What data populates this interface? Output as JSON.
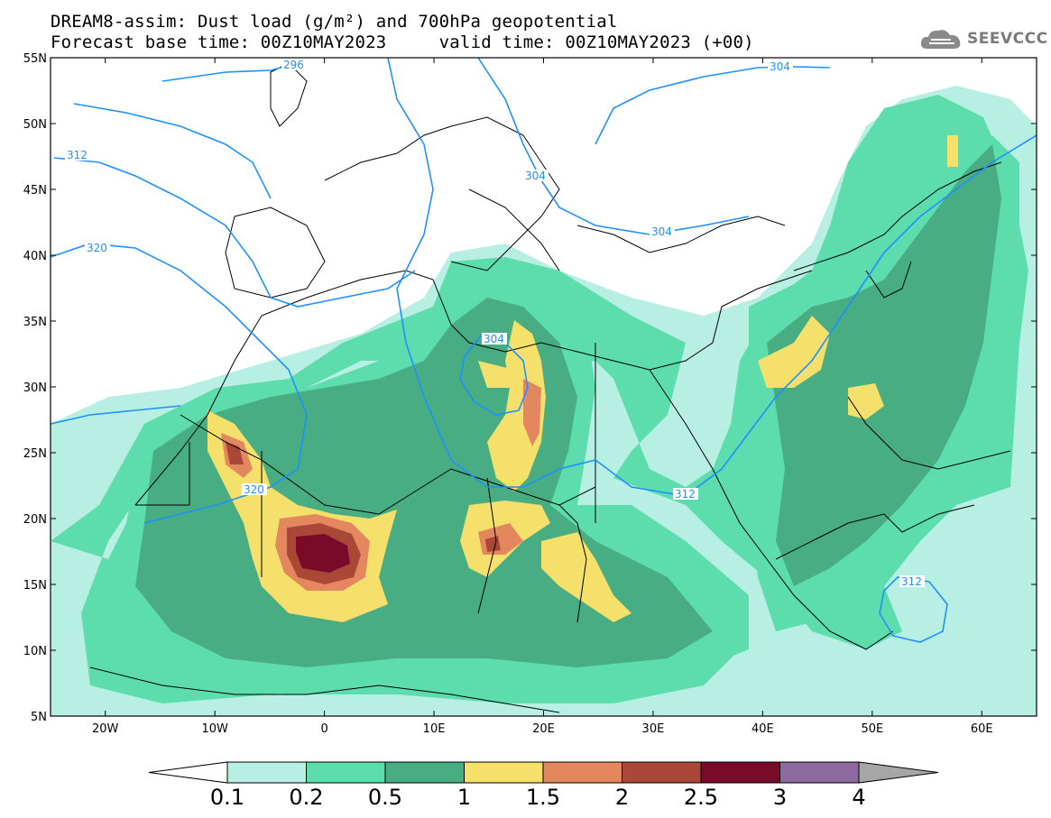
{
  "title": {
    "line1": "DREAM8-assim: Dust load (g/m²) and 700hPa geopotential",
    "line2_left": "Forecast base time: 00Z10MAY2023",
    "line2_right": "valid time: 00Z10MAY2023 (+00)"
  },
  "logo": {
    "text": "SEEVCCC",
    "icon": "cloud-icon"
  },
  "axes": {
    "lat_labels": [
      "55N",
      "50N",
      "45N",
      "40N",
      "35N",
      "30N",
      "25N",
      "20N",
      "15N",
      "10N",
      "5N"
    ],
    "lon_labels": [
      "20W",
      "10W",
      "0",
      "10E",
      "20E",
      "30E",
      "40E",
      "50E",
      "60E"
    ],
    "lat_range": [
      5,
      55
    ],
    "lon_range": [
      -25,
      65
    ]
  },
  "contours": {
    "labels": [
      "296",
      "304",
      "312",
      "320",
      "304",
      "304",
      "304",
      "320",
      "312",
      "312"
    ],
    "color": "#1e90ff"
  },
  "colorbar": {
    "tick_labels": [
      "0.1",
      "0.2",
      "0.5",
      "1",
      "1.5",
      "2",
      "2.5",
      "3",
      "4"
    ],
    "colors": [
      "#b7efe3",
      "#5ddcae",
      "#48ad82",
      "#f5e06b",
      "#e3875f",
      "#aa4838",
      "#7a0a2a",
      "#8c6aa0",
      "#a6a6a6"
    ]
  }
}
